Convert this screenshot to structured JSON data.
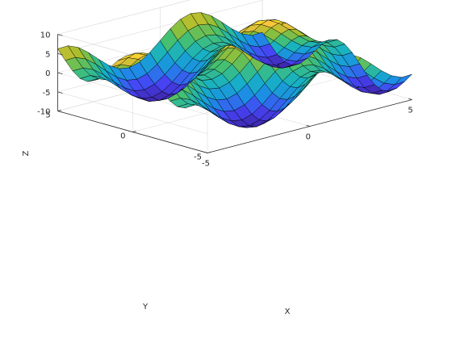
{
  "chart_data": {
    "type": "surface",
    "title": "",
    "xlabel": "X",
    "ylabel": "Y",
    "zlabel": "Z",
    "xlim": [
      -5,
      5
    ],
    "ylim": [
      -5,
      5
    ],
    "zlim": [
      -10,
      10
    ],
    "x_ticks": [
      -5,
      0,
      5
    ],
    "y_ticks": [
      -5,
      0,
      5
    ],
    "z_ticks": [
      -10,
      -5,
      0,
      5,
      10
    ],
    "x_tick_labels": [
      "-5",
      "0",
      "5"
    ],
    "y_tick_labels": [
      "-5",
      "0",
      "5"
    ],
    "z_tick_labels": [
      "-10",
      "-5",
      "0",
      "5",
      "10"
    ],
    "grid": true,
    "box": "open",
    "colormap": "parula",
    "colormap_stops": [
      "#3e26a8",
      "#4743f6",
      "#1c8ee5",
      "#17b1c4",
      "#46c06f",
      "#a5be2c",
      "#f8c23e",
      "#f9fb15"
    ],
    "mesh_color": "#000000",
    "grid_size": 21,
    "function": "z = 5*sin(x) + 5*cos(y) (approximate)"
  }
}
